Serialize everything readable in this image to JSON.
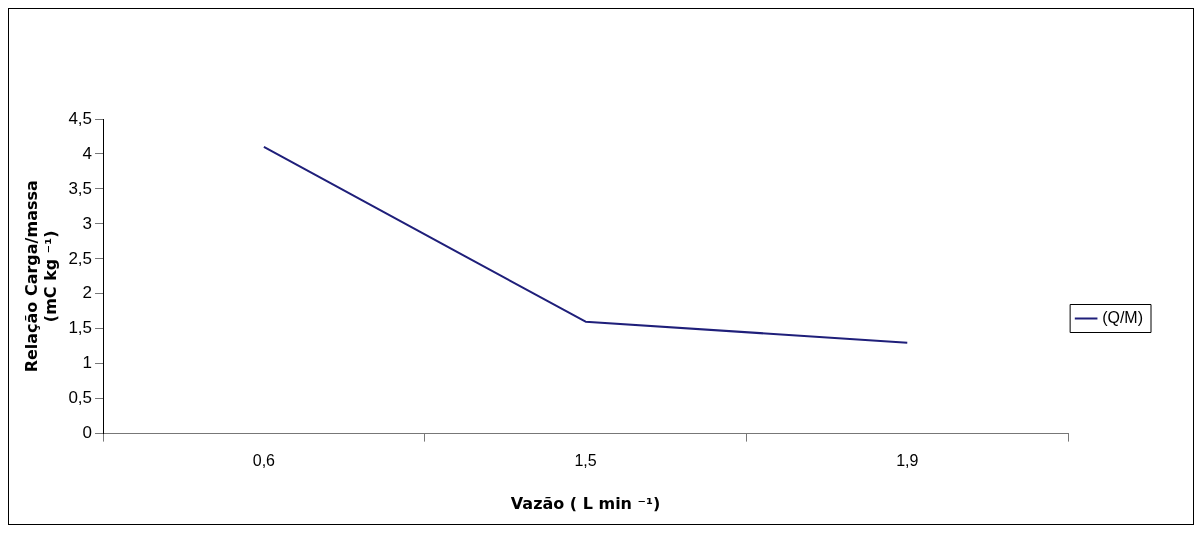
{
  "chart_data": {
    "type": "line",
    "xlabel": "Vazão ( L min ⁻¹)",
    "ylabel": [
      "Relação Carga/massa",
      "(mC kg ⁻¹)"
    ],
    "categories": [
      "0,6",
      "1,5",
      "1,9"
    ],
    "series": [
      {
        "name": "(Q/M)",
        "color": "#1f1f7a",
        "values": [
          4.1,
          1.6,
          1.3
        ]
      }
    ],
    "ylim": [
      0,
      4.5
    ],
    "yticks": [
      {
        "value": 0,
        "label": "0"
      },
      {
        "value": 0.5,
        "label": "0,5"
      },
      {
        "value": 1,
        "label": "1"
      },
      {
        "value": 1.5,
        "label": "1,5"
      },
      {
        "value": 2,
        "label": "2"
      },
      {
        "value": 2.5,
        "label": "2,5"
      },
      {
        "value": 3,
        "label": "3"
      },
      {
        "value": 3.5,
        "label": "3,5"
      },
      {
        "value": 4,
        "label": "4"
      },
      {
        "value": 4.5,
        "label": "4,5"
      }
    ],
    "grid": false,
    "legend": "right",
    "marker": "none",
    "line_style": "solid"
  }
}
